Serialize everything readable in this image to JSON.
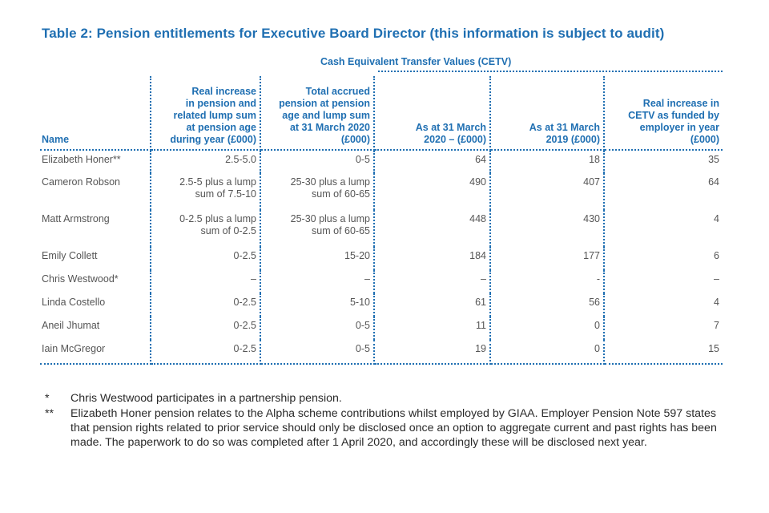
{
  "title": "Table 2:  Pension entitlements for Executive Board Director (this information is subject to audit)",
  "group_header": "Cash Equivalent Transfer Values (CETV)",
  "columns": [
    "Name",
    "Real increase\nin pension and\nrelated lump sum\nat pension age\nduring year (£000)",
    "Total accrued\npension at pension\nage and lump sum\nat 31 March 2020\n(£000)",
    "As at 31 March\n2020 – (£000)",
    "As at 31 March\n2019 (£000)",
    "Real increase in\nCETV as funded by\nemployer in year\n(£000)"
  ],
  "rows": [
    {
      "name": "Elizabeth Honer**",
      "real_increase": "2.5-5.0",
      "total_accrued": "0-5",
      "cetv_2020": "64",
      "cetv_2019": "18",
      "cetv_increase": "35"
    },
    {
      "name": "Cameron Robson",
      "real_increase": "2.5-5 plus a lump\nsum of 7.5-10",
      "total_accrued": "25-30 plus a lump\nsum of 60-65",
      "cetv_2020": "490",
      "cetv_2019": "407",
      "cetv_increase": "64"
    },
    {
      "name": "Matt Armstrong",
      "real_increase": "0-2.5 plus a lump\nsum of 0-2.5",
      "total_accrued": "25-30 plus a lump\nsum of 60-65",
      "cetv_2020": "448",
      "cetv_2019": "430",
      "cetv_increase": "4"
    },
    {
      "name": "Emily Collett",
      "real_increase": "0-2.5",
      "total_accrued": "15-20",
      "cetv_2020": "184",
      "cetv_2019": "177",
      "cetv_increase": "6"
    },
    {
      "name": "Chris Westwood*",
      "real_increase": "–",
      "total_accrued": "–",
      "cetv_2020": "–",
      "cetv_2019": "-",
      "cetv_increase": "–"
    },
    {
      "name": "Linda Costello",
      "real_increase": "0-2.5",
      "total_accrued": "5-10",
      "cetv_2020": "61",
      "cetv_2019": "56",
      "cetv_increase": "4"
    },
    {
      "name": "Aneil Jhumat",
      "real_increase": "0-2.5",
      "total_accrued": "0-5",
      "cetv_2020": "11",
      "cetv_2019": "0",
      "cetv_increase": "7"
    },
    {
      "name": "Iain McGregor",
      "real_increase": "0-2.5",
      "total_accrued": "0-5",
      "cetv_2020": "19",
      "cetv_2019": "0",
      "cetv_increase": "15"
    }
  ],
  "footnotes": [
    {
      "mark": "*",
      "text": "Chris Westwood participates in a partnership pension."
    },
    {
      "mark": "**",
      "text": "Elizabeth Honer pension relates to the Alpha scheme contributions whilst employed by GIAA. Employer Pension Note 597 states that pension rights related to prior service should only be disclosed once an option to aggregate current and past rights has been made. The paperwork to do so was completed after 1 April 2020, and accordingly these will be disclosed next year."
    }
  ],
  "colors": {
    "accent": "#1f6fb2",
    "text": "#555555"
  }
}
